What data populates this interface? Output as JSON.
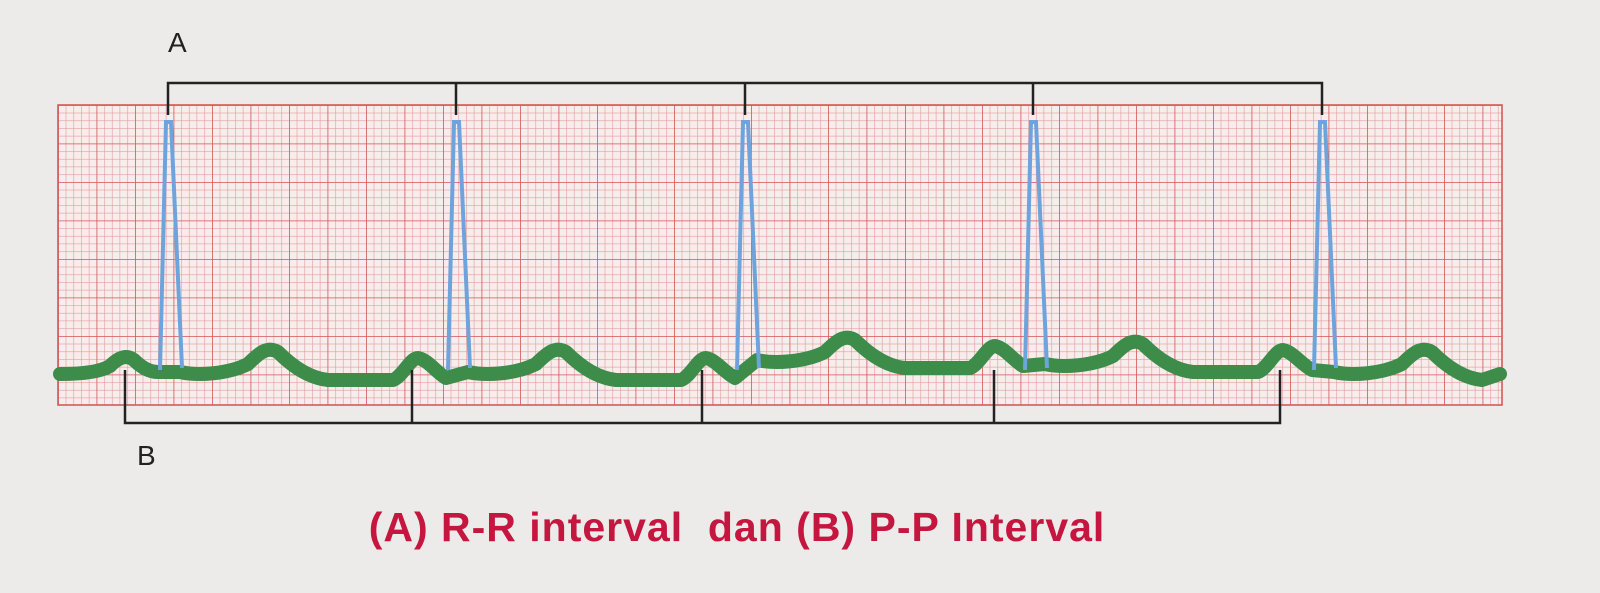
{
  "labels": {
    "a": "A",
    "b": "B"
  },
  "caption": "(A) R-R interval  dan (B) P-P Interval"
}
